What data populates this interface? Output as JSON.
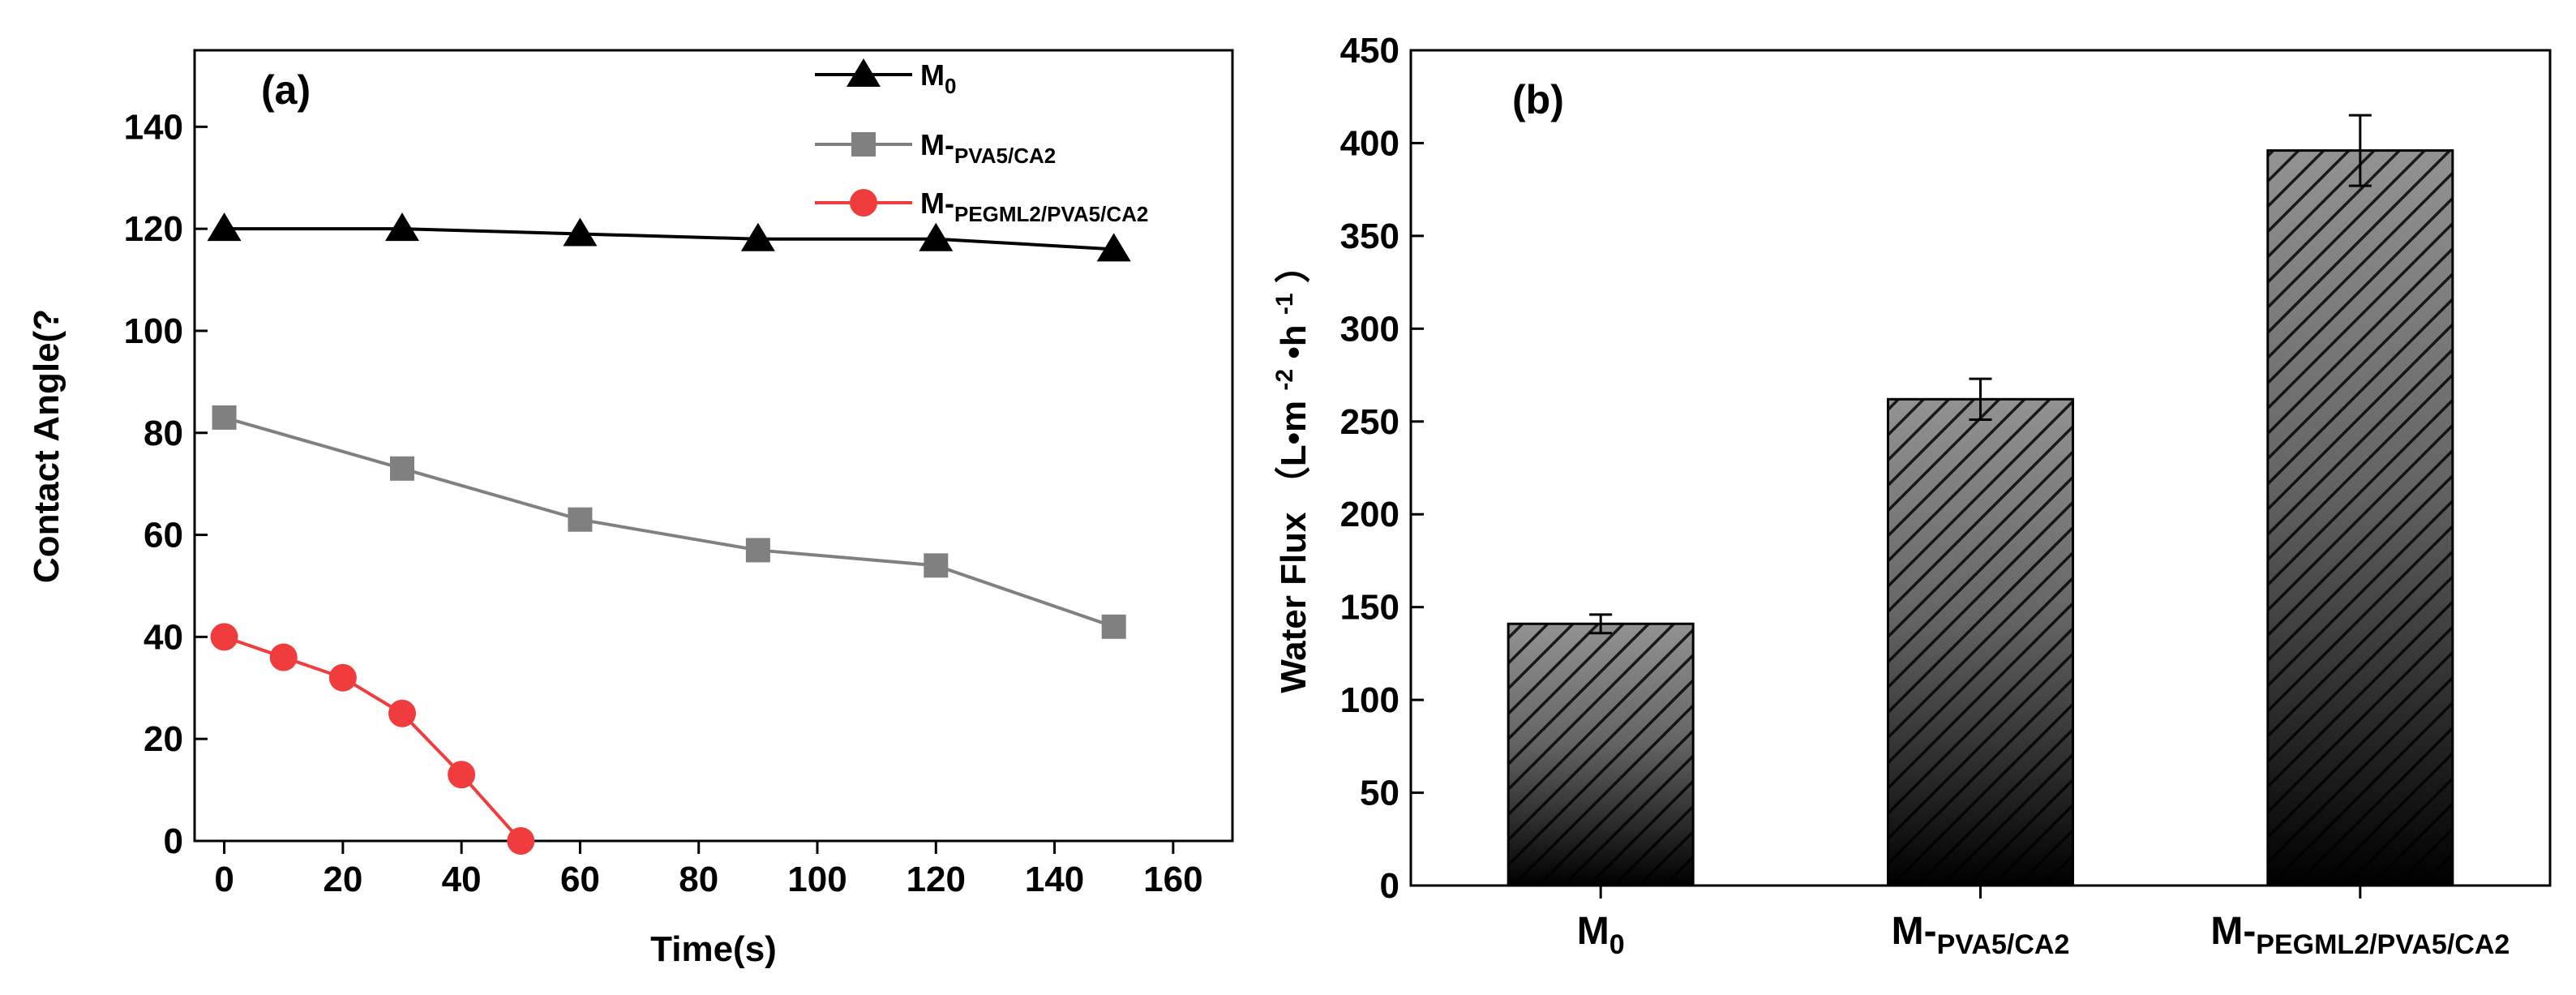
{
  "chart_data": [
    {
      "type": "line",
      "panel_label": "(a)",
      "xlabel": "Time(s)",
      "ylabel": "Contact Angle(?",
      "xlim": [
        -5,
        170
      ],
      "ylim": [
        0,
        155
      ],
      "xticks": [
        0,
        20,
        40,
        60,
        80,
        100,
        120,
        140,
        160
      ],
      "yticks": [
        0,
        20,
        40,
        60,
        80,
        100,
        120,
        140
      ],
      "legend_position": "top-right",
      "series": [
        {
          "name_main": "M",
          "name_sub": "0",
          "color": "#000000",
          "marker": "triangle",
          "x": [
            0,
            30,
            60,
            90,
            120,
            150
          ],
          "y": [
            120,
            120,
            119,
            118,
            118,
            116
          ]
        },
        {
          "name_main": "M-",
          "name_sub": "PVA5/CA2",
          "color": "#808080",
          "marker": "square",
          "x": [
            0,
            30,
            60,
            90,
            120,
            150
          ],
          "y": [
            83,
            73,
            63,
            57,
            54,
            42
          ]
        },
        {
          "name_main": "M-",
          "name_sub": "PEGML2/PVA5/CA2",
          "color": "#f03c3c",
          "marker": "circle",
          "x": [
            0,
            10,
            20,
            30,
            40,
            50
          ],
          "y": [
            40,
            36,
            32,
            25,
            13,
            0
          ]
        }
      ]
    },
    {
      "type": "bar",
      "panel_label": "(b)",
      "xlabel": "",
      "ylabel_main": "Water Flux",
      "ylabel_unit": "（L•m",
      "ylabel_exp1": "-2",
      "ylabel_mid": "•h",
      "ylabel_exp2": "-1",
      "ylabel_close": "）",
      "ylim": [
        0,
        450
      ],
      "yticks": [
        0,
        50,
        100,
        150,
        200,
        250,
        300,
        350,
        400,
        450
      ],
      "categories": [
        {
          "main": "M",
          "sub": "0"
        },
        {
          "main": "M-",
          "sub": "PVA5/CA2"
        },
        {
          "main": "M-",
          "sub": "PEGML2/PVA5/CA2"
        }
      ],
      "values": [
        141,
        262,
        396
      ],
      "errors": [
        5,
        11,
        19
      ]
    }
  ]
}
